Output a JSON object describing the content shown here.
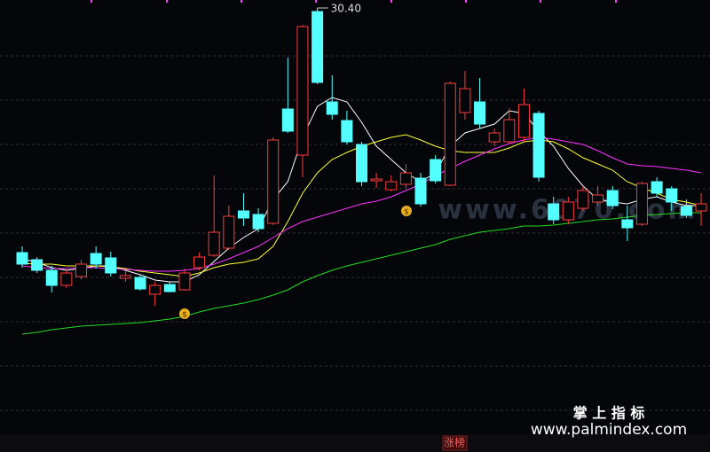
{
  "chart_data": {
    "type": "candlestick",
    "ylim": [
      20.78,
      30.58
    ],
    "grid_levels": [
      29.32,
      28.32,
      27.32,
      26.32,
      25.32,
      24.32,
      23.32,
      22.32,
      21.32
    ],
    "up_color": "#ff3b3b",
    "down_color": "#54ffff",
    "open": [
      24.88,
      24.72,
      24.48,
      24.14,
      24.34,
      24.86,
      24.76,
      24.3,
      24.32,
      23.94,
      24.16,
      24.04,
      24.54,
      24.82,
      24.98,
      25.82,
      25.74,
      25.54,
      28.12,
      27.08,
      30.32,
      28.28,
      27.86,
      27.32,
      26.5,
      26.3,
      26.42,
      26.56,
      26.98,
      26.4,
      28.04,
      28.28,
      27.38,
      27.38,
      27.48,
      28.02,
      25.98,
      25.62,
      25.88,
      26.02,
      26.28,
      25.62,
      25.52,
      26.48,
      26.32,
      25.92,
      25.82
    ],
    "close": [
      24.62,
      24.48,
      24.14,
      24.42,
      24.62,
      24.62,
      24.42,
      24.36,
      24.06,
      24.14,
      24.0,
      24.42,
      24.78,
      25.34,
      25.7,
      25.66,
      25.42,
      27.42,
      27.62,
      29.98,
      28.72,
      28.0,
      27.38,
      26.48,
      26.54,
      26.48,
      26.68,
      25.98,
      26.5,
      28.7,
      28.58,
      27.78,
      27.58,
      27.88,
      28.22,
      26.58,
      25.62,
      26.02,
      26.28,
      26.18,
      25.94,
      25.44,
      26.44,
      26.22,
      26.02,
      25.72,
      25.98
    ],
    "high": [
      25.02,
      24.78,
      24.58,
      24.48,
      24.72,
      25.02,
      24.9,
      24.48,
      24.38,
      24.22,
      24.22,
      24.52,
      24.88,
      26.62,
      25.94,
      26.22,
      25.88,
      27.48,
      29.28,
      30.02,
      30.4,
      28.88,
      28.08,
      27.38,
      26.68,
      26.62,
      26.88,
      26.68,
      27.08,
      28.74,
      28.98,
      28.82,
      27.68,
      28.14,
      28.58,
      28.08,
      26.14,
      26.14,
      26.38,
      26.38,
      26.38,
      25.94,
      26.48,
      26.58,
      26.38,
      26.08,
      26.22
    ],
    "low": [
      24.54,
      24.42,
      23.98,
      24.08,
      24.28,
      24.52,
      24.34,
      24.22,
      24.02,
      23.68,
      23.98,
      24.02,
      24.48,
      24.78,
      24.94,
      25.48,
      25.34,
      25.5,
      27.58,
      26.58,
      28.68,
      27.88,
      27.32,
      26.38,
      26.34,
      26.26,
      26.34,
      25.92,
      26.44,
      26.38,
      27.88,
      27.68,
      27.28,
      27.32,
      27.38,
      26.48,
      25.52,
      25.52,
      25.82,
      25.94,
      25.86,
      25.14,
      25.48,
      26.14,
      25.82,
      25.66,
      25.48
    ],
    "lines": [
      {
        "color": "#ffffff",
        "values": [
          24.74,
          24.66,
          24.54,
          24.48,
          24.52,
          24.58,
          24.58,
          24.48,
          24.38,
          24.26,
          24.22,
          24.22,
          24.38,
          24.68,
          24.98,
          25.22,
          25.42,
          26.08,
          26.48,
          27.48,
          28.18,
          28.38,
          28.28,
          27.82,
          27.28,
          26.98,
          26.68,
          26.48,
          26.68,
          27.28,
          27.58,
          27.68,
          27.78,
          28.08,
          28.02,
          27.62,
          27.28,
          26.78,
          26.38,
          26.08,
          26.02,
          25.98,
          26.08,
          26.14,
          26.02,
          25.94,
          25.94
        ]
      },
      {
        "color": "#ffff33",
        "values": [
          24.64,
          24.62,
          24.62,
          24.58,
          24.58,
          24.58,
          24.56,
          24.52,
          24.46,
          24.42,
          24.38,
          24.34,
          24.42,
          24.54,
          24.62,
          24.66,
          24.74,
          25.02,
          25.58,
          26.22,
          26.68,
          26.98,
          27.14,
          27.28,
          27.38,
          27.48,
          27.54,
          27.42,
          27.28,
          27.18,
          27.14,
          27.14,
          27.14,
          27.24,
          27.38,
          27.42,
          27.38,
          27.22,
          27.02,
          26.88,
          26.74,
          26.48,
          26.34,
          26.22,
          26.08,
          26.02,
          25.94
        ]
      },
      {
        "color": "#ff33ff",
        "values": [
          24.58,
          24.54,
          24.52,
          24.52,
          24.54,
          24.54,
          24.52,
          24.5,
          24.48,
          24.46,
          24.46,
          24.48,
          24.52,
          24.62,
          24.74,
          24.88,
          25.02,
          25.22,
          25.42,
          25.58,
          25.68,
          25.78,
          25.88,
          25.98,
          26.04,
          26.14,
          26.28,
          26.42,
          26.62,
          26.78,
          26.94,
          27.08,
          27.22,
          27.34,
          27.42,
          27.48,
          27.44,
          27.38,
          27.32,
          27.18,
          27.02,
          26.88,
          26.84,
          26.82,
          26.78,
          26.74,
          26.68
        ]
      },
      {
        "color": "#22dd22",
        "values": [
          23.04,
          23.08,
          23.14,
          23.18,
          23.22,
          23.24,
          23.26,
          23.28,
          23.3,
          23.34,
          23.38,
          23.44,
          23.54,
          23.62,
          23.68,
          23.74,
          23.82,
          23.92,
          24.04,
          24.22,
          24.36,
          24.48,
          24.58,
          24.66,
          24.74,
          24.82,
          24.9,
          24.98,
          25.06,
          25.18,
          25.26,
          25.34,
          25.38,
          25.42,
          25.48,
          25.48,
          25.5,
          25.54,
          25.58,
          25.62,
          25.64,
          25.68,
          25.72,
          25.74,
          25.76,
          25.78,
          25.78
        ]
      }
    ],
    "high_label": "30.40",
    "watermark": "www.6070.com",
    "brand_title": "掌 上 指 标",
    "brand_url": "www.palmindex.com",
    "tag": "涨榜"
  }
}
